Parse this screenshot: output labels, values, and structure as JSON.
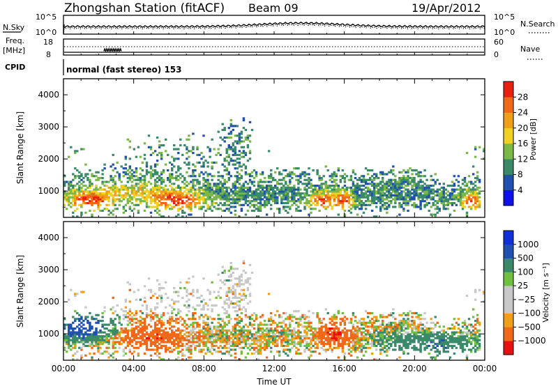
{
  "header": {
    "title": "Zhongshan Station (fitACF)",
    "beam": "Beam 09",
    "date": "19/Apr/2012"
  },
  "top_panels": {
    "nsky_label": "N.Sky",
    "nsky_ticks": [
      "10^5",
      "10^0"
    ],
    "nsearch_label": "N.Search",
    "nsearch_ticks": [
      "10^5",
      "10^0"
    ],
    "freq_label_line1": "Freq.",
    "freq_label_line2": "[MHz]",
    "freq_ticks": [
      "18",
      "8"
    ],
    "nave_label": "Nave",
    "nave_ticks": [
      "60",
      "0"
    ],
    "cpid_label": "CPID",
    "cpid_text": "normal (fast stereo) 153"
  },
  "colors": {
    "power": [
      "#1010e8",
      "#2050b0",
      "#3a8a6a",
      "#7ab848",
      "#f0d020",
      "#f0a018",
      "#f06818",
      "#e82010"
    ],
    "velocity": [
      "#e81010",
      "#f06818",
      "#f0a018",
      "#c8c8c8",
      "#c8c8c8",
      "#70c040",
      "#3a8a6a",
      "#2050b0",
      "#1030d8"
    ]
  },
  "chart_data": [
    {
      "type": "heatmap",
      "name": "power",
      "ylabel": "Slant Range [km]",
      "xlabel": "",
      "yticks": [
        "1000",
        "2000",
        "3000",
        "4000"
      ],
      "ylim": [
        180,
        4500
      ],
      "xlim": [
        0,
        24
      ],
      "colorbar_label": "Power [dB]",
      "colorbar_ticks": [
        "4",
        "8",
        "12",
        "16",
        "20",
        "24",
        "28"
      ],
      "colorbar_range": [
        0,
        32
      ],
      "grid": false
    },
    {
      "type": "heatmap",
      "name": "velocity",
      "ylabel": "Slant Range [km]",
      "xlabel": "Time UT",
      "yticks": [
        "1000",
        "2000",
        "3000",
        "4000"
      ],
      "xticks": [
        "00:00",
        "04:00",
        "08:00",
        "12:00",
        "16:00",
        "20:00",
        "00:00"
      ],
      "ylim": [
        180,
        4500
      ],
      "xlim": [
        0,
        24
      ],
      "colorbar_label": "Velocity [m s⁻¹]",
      "colorbar_ticks": [
        "1000",
        "500",
        "100",
        "25",
        "−25",
        "−100",
        "−500",
        "−1000"
      ],
      "grid": false
    }
  ]
}
